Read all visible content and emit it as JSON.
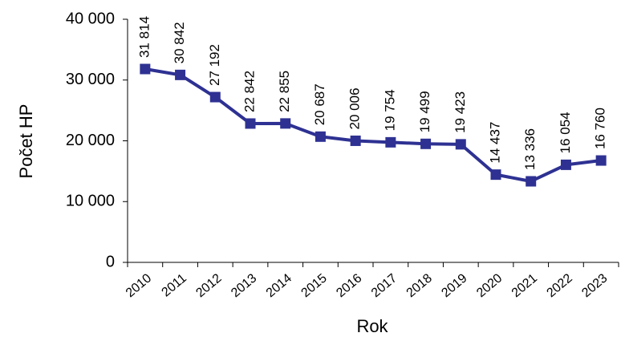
{
  "chart_data": {
    "type": "line",
    "title": "",
    "xlabel": "Rok",
    "ylabel": "Počet HP",
    "ylim": [
      0,
      40000
    ],
    "yticks": [
      0,
      10000,
      20000,
      30000,
      40000
    ],
    "ytick_labels": [
      "0",
      "10 000",
      "20 000",
      "30 000",
      "40 000"
    ],
    "grid": false,
    "legend": "none",
    "categories": [
      "2010",
      "2011",
      "2012",
      "2013",
      "2014",
      "2015",
      "2016",
      "2017",
      "2018",
      "2019",
      "2020",
      "2021",
      "2022",
      "2023"
    ],
    "series": [
      {
        "values": [
          31814,
          30842,
          27192,
          22842,
          22855,
          20687,
          20006,
          19754,
          19499,
          19423,
          14437,
          13336,
          16054,
          16760
        ],
        "data_labels": [
          "31 814",
          "30 842",
          "27 192",
          "22 842",
          "22 855",
          "20 687",
          "20 006",
          "19 754",
          "19 499",
          "19 423",
          "14 437",
          "13 336",
          "16 054",
          "16 760"
        ],
        "color": "#2e3192",
        "marker": "square"
      }
    ]
  }
}
